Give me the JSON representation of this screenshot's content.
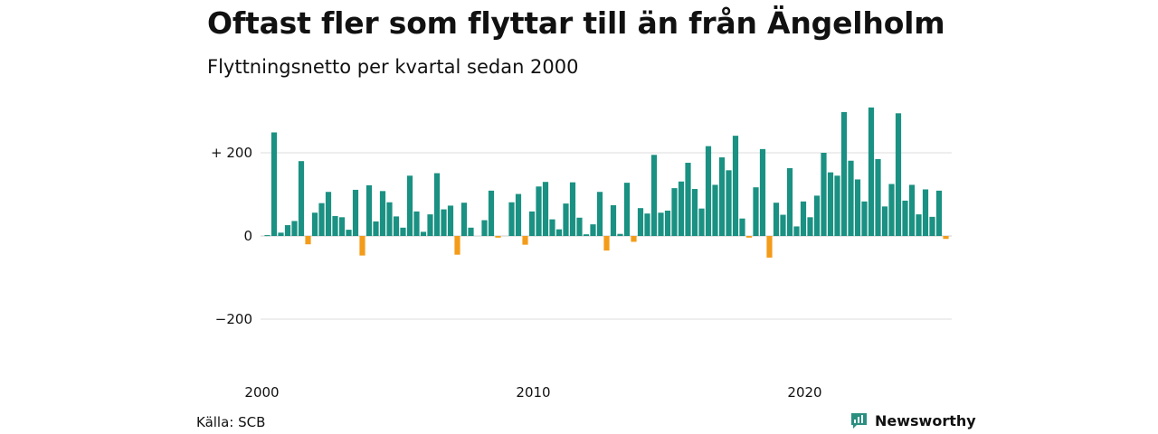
{
  "title": "Oftast fler som flyttar till än från Ängelholm",
  "subtitle": "Flyttningsnetto per kvartal sedan 2000",
  "source": "Källa: SCB",
  "brand": {
    "name": "Newsworthy",
    "icon": "newsworthy-logo-icon",
    "color": "#2b8f80"
  },
  "colors": {
    "positive": "#1a9182",
    "negative": "#f39c1a",
    "grid": "#dddddd",
    "text": "#111111"
  },
  "chart_data": {
    "type": "bar",
    "title": "Oftast fler som flyttar till än från Ängelholm",
    "subtitle": "Flyttningsnetto per kvartal sedan 2000",
    "xlabel": "",
    "ylabel": "",
    "ylim": [
      -300,
      330
    ],
    "yticks": [
      200,
      0,
      -200
    ],
    "ytick_labels": [
      "+ 200",
      "0",
      "−200"
    ],
    "xticks": [
      {
        "index": 0,
        "label": "2000"
      },
      {
        "index": 40,
        "label": "2010"
      },
      {
        "index": 80,
        "label": "2020"
      }
    ],
    "grid": true,
    "start_period": "2000 Q1",
    "categories": [
      "2000 Q1",
      "2000 Q2",
      "2000 Q3",
      "2000 Q4",
      "2001 Q1",
      "2001 Q2",
      "2001 Q3",
      "2001 Q4",
      "2002 Q1",
      "2002 Q2",
      "2002 Q3",
      "2002 Q4",
      "2003 Q1",
      "2003 Q2",
      "2003 Q3",
      "2003 Q4",
      "2004 Q1",
      "2004 Q2",
      "2004 Q3",
      "2004 Q4",
      "2005 Q1",
      "2005 Q2",
      "2005 Q3",
      "2005 Q4",
      "2006 Q1",
      "2006 Q2",
      "2006 Q3",
      "2006 Q4",
      "2007 Q1",
      "2007 Q2",
      "2007 Q3",
      "2007 Q4",
      "2008 Q1",
      "2008 Q2",
      "2008 Q3",
      "2008 Q4",
      "2009 Q1",
      "2009 Q2",
      "2009 Q3",
      "2009 Q4",
      "2010 Q1",
      "2010 Q2",
      "2010 Q3",
      "2010 Q4",
      "2011 Q1",
      "2011 Q2",
      "2011 Q3",
      "2011 Q4",
      "2012 Q1",
      "2012 Q2",
      "2012 Q3",
      "2012 Q4",
      "2013 Q1",
      "2013 Q2",
      "2013 Q3",
      "2013 Q4",
      "2014 Q1",
      "2014 Q2",
      "2014 Q3",
      "2014 Q4",
      "2015 Q1",
      "2015 Q2",
      "2015 Q3",
      "2015 Q4",
      "2016 Q1",
      "2016 Q2",
      "2016 Q3",
      "2016 Q4",
      "2017 Q1",
      "2017 Q2",
      "2017 Q3",
      "2017 Q4",
      "2018 Q1",
      "2018 Q2",
      "2018 Q3",
      "2018 Q4",
      "2019 Q1",
      "2019 Q2",
      "2019 Q3",
      "2019 Q4",
      "2020 Q1",
      "2020 Q2",
      "2020 Q3",
      "2020 Q4",
      "2021 Q1",
      "2021 Q2",
      "2021 Q3",
      "2021 Q4",
      "2022 Q1",
      "2022 Q2",
      "2022 Q3",
      "2022 Q4",
      "2023 Q1",
      "2023 Q2",
      "2023 Q3",
      "2023 Q4",
      "2024 Q1",
      "2024 Q2",
      "2024 Q3",
      "2024 Q4",
      "2025 Q1"
    ],
    "values": [
      2,
      249,
      8,
      26,
      36,
      180,
      -20,
      56,
      79,
      106,
      48,
      45,
      15,
      111,
      -47,
      122,
      35,
      108,
      81,
      47,
      20,
      145,
      59,
      10,
      52,
      151,
      64,
      73,
      -45,
      80,
      20,
      0,
      38,
      109,
      -4,
      0,
      81,
      101,
      -21,
      59,
      119,
      130,
      40,
      16,
      78,
      129,
      44,
      4,
      28,
      106,
      -35,
      74,
      5,
      128,
      -14,
      67,
      54,
      195,
      56,
      61,
      115,
      131,
      176,
      113,
      66,
      216,
      123,
      189,
      158,
      241,
      42,
      -4,
      117,
      209,
      -52,
      80,
      51,
      163,
      23,
      83,
      45,
      97,
      200,
      153,
      145,
      298,
      181,
      136,
      83,
      309,
      185,
      71,
      125,
      295,
      85,
      123,
      52,
      112,
      46,
      109,
      -7
    ]
  }
}
